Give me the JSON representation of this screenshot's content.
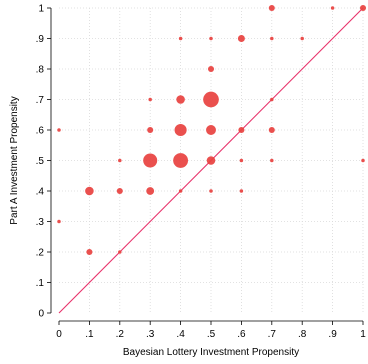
{
  "chart_data": {
    "type": "scatter",
    "title": "",
    "xlabel": "Bayesian Lottery Investment Propensity",
    "ylabel": "Part A Investment Propensity",
    "xlim": [
      0,
      1
    ],
    "ylim": [
      0,
      1
    ],
    "x_ticks": [
      "0",
      ".1",
      ".2",
      ".3",
      ".4",
      ".5",
      ".6",
      ".7",
      ".8",
      ".9",
      "1"
    ],
    "y_ticks": [
      "0",
      ".1",
      ".2",
      ".3",
      ".4",
      ".5",
      ".6",
      ".7",
      ".8",
      ".9",
      "1"
    ],
    "grid": true,
    "reference_line": {
      "from": [
        0,
        0
      ],
      "to": [
        1,
        1
      ],
      "color": "#e8336b"
    },
    "marker_color": "#e8413f",
    "note": "marker area proportional to observation count",
    "points": [
      {
        "x": 0.7,
        "y": 1.0,
        "count": 3
      },
      {
        "x": 0.9,
        "y": 1.0,
        "count": 1
      },
      {
        "x": 1.0,
        "y": 1.0,
        "count": 3
      },
      {
        "x": 0.4,
        "y": 0.9,
        "count": 1
      },
      {
        "x": 0.5,
        "y": 0.9,
        "count": 1
      },
      {
        "x": 0.6,
        "y": 0.9,
        "count": 4
      },
      {
        "x": 0.7,
        "y": 0.9,
        "count": 1
      },
      {
        "x": 0.8,
        "y": 0.9,
        "count": 1
      },
      {
        "x": 0.5,
        "y": 0.8,
        "count": 3
      },
      {
        "x": 0.3,
        "y": 0.7,
        "count": 1
      },
      {
        "x": 0.4,
        "y": 0.7,
        "count": 6
      },
      {
        "x": 0.5,
        "y": 0.7,
        "count": 20
      },
      {
        "x": 0.7,
        "y": 0.7,
        "count": 1
      },
      {
        "x": 0.0,
        "y": 0.6,
        "count": 1
      },
      {
        "x": 0.3,
        "y": 0.6,
        "count": 3
      },
      {
        "x": 0.4,
        "y": 0.6,
        "count": 12
      },
      {
        "x": 0.5,
        "y": 0.6,
        "count": 8
      },
      {
        "x": 0.6,
        "y": 0.6,
        "count": 3
      },
      {
        "x": 0.7,
        "y": 0.6,
        "count": 3
      },
      {
        "x": 0.2,
        "y": 0.5,
        "count": 1
      },
      {
        "x": 0.3,
        "y": 0.5,
        "count": 16
      },
      {
        "x": 0.4,
        "y": 0.5,
        "count": 18
      },
      {
        "x": 0.5,
        "y": 0.5,
        "count": 6
      },
      {
        "x": 0.6,
        "y": 0.5,
        "count": 1
      },
      {
        "x": 0.7,
        "y": 0.5,
        "count": 1
      },
      {
        "x": 1.0,
        "y": 0.5,
        "count": 1
      },
      {
        "x": 0.1,
        "y": 0.4,
        "count": 6
      },
      {
        "x": 0.2,
        "y": 0.4,
        "count": 3
      },
      {
        "x": 0.3,
        "y": 0.4,
        "count": 5
      },
      {
        "x": 0.4,
        "y": 0.4,
        "count": 1
      },
      {
        "x": 0.5,
        "y": 0.4,
        "count": 1
      },
      {
        "x": 0.6,
        "y": 0.4,
        "count": 1
      },
      {
        "x": 0.0,
        "y": 0.3,
        "count": 1
      },
      {
        "x": 0.1,
        "y": 0.2,
        "count": 3
      },
      {
        "x": 0.2,
        "y": 0.2,
        "count": 1
      }
    ]
  }
}
